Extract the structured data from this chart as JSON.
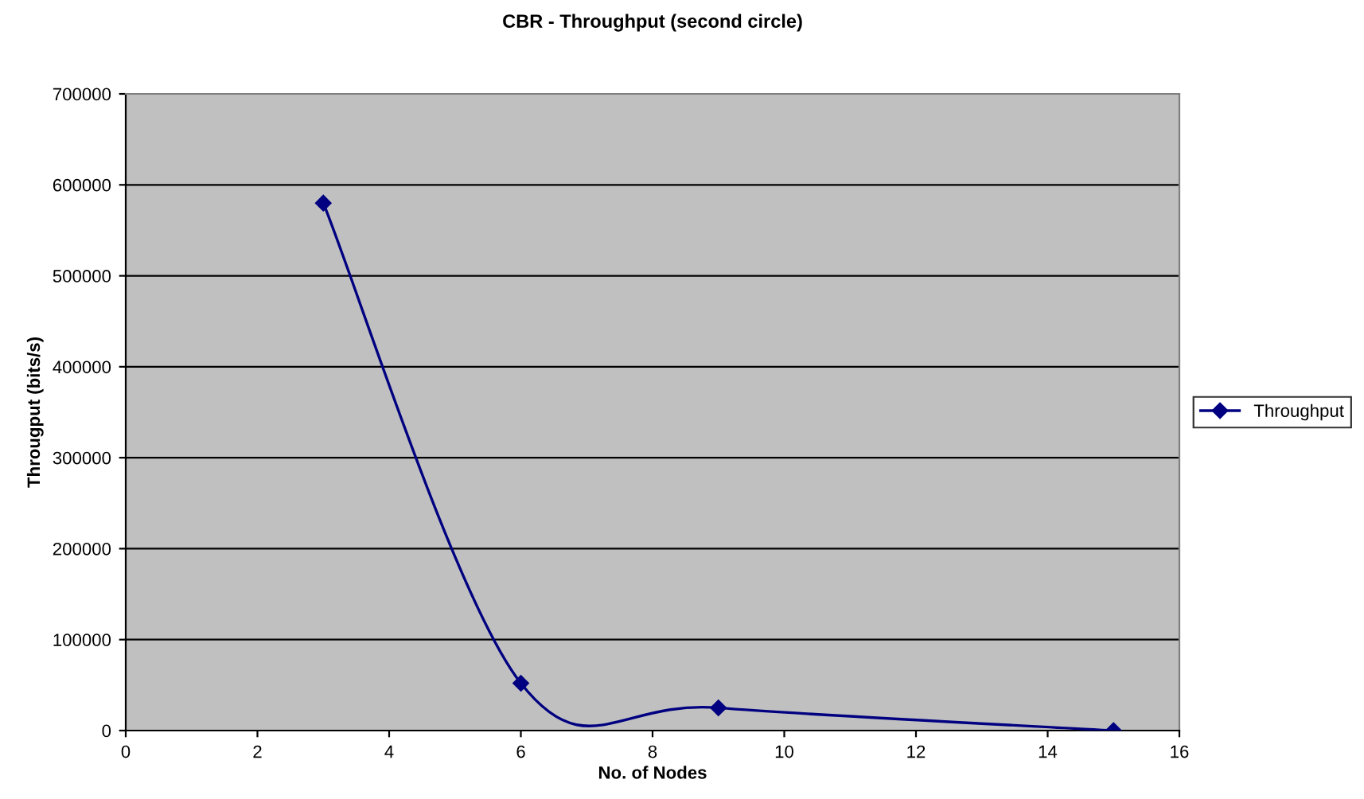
{
  "chart_data": {
    "type": "line",
    "title": "CBR - Throughput (second circle)",
    "xlabel": "No. of Nodes",
    "ylabel": "Througput (bits/s)",
    "x": [
      3,
      6,
      9,
      15
    ],
    "series": [
      {
        "name": "Throughput",
        "color": "#000080",
        "values": [
          580000,
          52000,
          25000,
          0
        ]
      }
    ],
    "xlim": [
      0,
      16
    ],
    "xticks": [
      0,
      2,
      4,
      6,
      8,
      10,
      12,
      14,
      16
    ],
    "ylim": [
      0,
      700000
    ],
    "yticks": [
      0,
      100000,
      200000,
      300000,
      400000,
      500000,
      600000,
      700000
    ],
    "grid": "y",
    "legend": "right",
    "marker": "diamond",
    "line_style": "solid"
  }
}
